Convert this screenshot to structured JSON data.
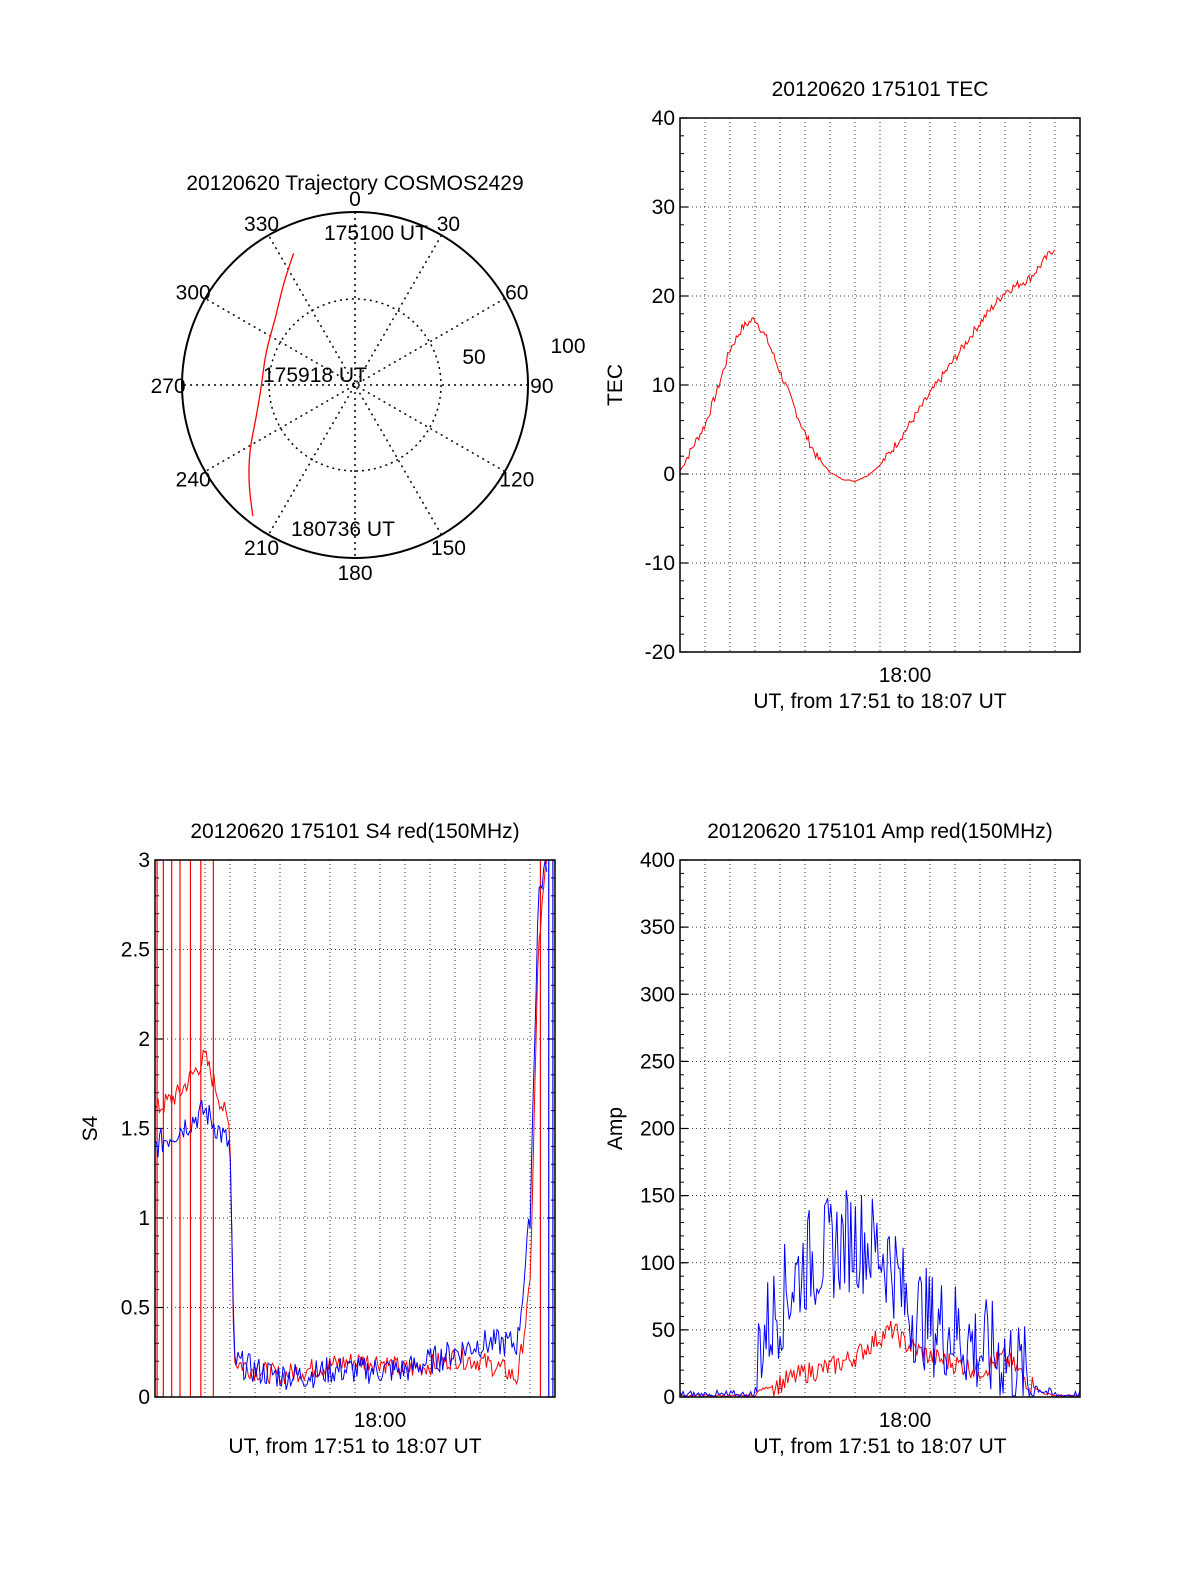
{
  "chart_data": [
    {
      "type": "polar",
      "title": "20120620 Trajectory COSMOS2429",
      "azimuth_labels": [
        {
          "az": 0,
          "label": "0"
        },
        {
          "az": 30,
          "label": "30"
        },
        {
          "az": 60,
          "label": "60"
        },
        {
          "az": 90,
          "label": "90"
        },
        {
          "az": 120,
          "label": "120"
        },
        {
          "az": 150,
          "label": "150"
        },
        {
          "az": 180,
          "label": "180"
        },
        {
          "az": 210,
          "label": "210"
        },
        {
          "az": 240,
          "label": "240"
        },
        {
          "az": 270,
          "label": "270"
        },
        {
          "az": 300,
          "label": "300"
        },
        {
          "az": 330,
          "label": "330"
        }
      ],
      "radial_labels": [
        "50",
        "100"
      ],
      "radial_max": 100,
      "radial_rings": [
        50
      ],
      "trajectory": {
        "color": "#ff0000",
        "points": [
          {
            "az": 335,
            "r": 84
          },
          {
            "az": 325,
            "r": 72
          },
          {
            "az": 310,
            "r": 60
          },
          {
            "az": 290,
            "r": 55
          },
          {
            "az": 270,
            "r": 54
          },
          {
            "az": 252,
            "r": 60
          },
          {
            "az": 238,
            "r": 72
          },
          {
            "az": 227,
            "r": 84
          },
          {
            "az": 218,
            "r": 96
          }
        ]
      },
      "annotations": [
        {
          "text": "175100 UT",
          "az": 335,
          "r": 84
        },
        {
          "text": "175918 UT",
          "az": 270,
          "r": 54
        },
        {
          "text": "180736 UT",
          "az": 218,
          "r": 96
        }
      ]
    },
    {
      "type": "line",
      "title": "20120620 175101 TEC",
      "ylabel": "TEC",
      "xlabel": "UT, from 17:51 to 18:07 UT",
      "xtick_label": "18:00",
      "xlim": [
        "17:51",
        "18:07"
      ],
      "ylim": [
        -20,
        40
      ],
      "yticks": [
        "-20",
        "-10",
        "0",
        "10",
        "20",
        "30",
        "40"
      ],
      "grid": true,
      "series": [
        {
          "color": "#ff0000",
          "noise": 0.5,
          "points": [
            [
              "17:51:00",
              0.3
            ],
            [
              "17:51:30",
              3.0
            ],
            [
              "17:52:00",
              5.5
            ],
            [
              "17:52:30",
              9.5
            ],
            [
              "17:53:00",
              14.0
            ],
            [
              "17:53:30",
              16.5
            ],
            [
              "17:54:00",
              17.5
            ],
            [
              "17:54:30",
              15.0
            ],
            [
              "17:55:00",
              11.5
            ],
            [
              "17:55:30",
              8.0
            ],
            [
              "17:56:00",
              4.5
            ],
            [
              "17:56:30",
              1.8
            ],
            [
              "17:57:00",
              0.2
            ],
            [
              "17:57:30",
              -0.6
            ],
            [
              "17:58:00",
              -0.8
            ],
            [
              "17:58:30",
              -0.2
            ],
            [
              "17:59:00",
              1.0
            ],
            [
              "17:59:30",
              2.8
            ],
            [
              "18:00:00",
              4.8
            ],
            [
              "18:01:00",
              9.0
            ],
            [
              "18:02:00",
              13.0
            ],
            [
              "18:03:00",
              17.0
            ],
            [
              "18:04:00",
              20.5
            ],
            [
              "18:05:00",
              22.0
            ],
            [
              "18:06:00",
              25.5
            ]
          ]
        }
      ]
    },
    {
      "type": "line",
      "title": "20120620 175101 S4 red(150MHz)",
      "ylabel": "S4",
      "xlabel": "UT, from 17:51 to 18:07 UT",
      "xtick_label": "18:00",
      "xlim": [
        "17:51",
        "18:07"
      ],
      "ylim": [
        0,
        3
      ],
      "yticks": [
        "0",
        "0.5",
        "1",
        "1.5",
        "2",
        "2.5",
        "3"
      ],
      "grid": true,
      "series": [
        {
          "color": "#ff0000",
          "noise": 0.06,
          "points": [
            [
              "17:51:00",
              1.6
            ],
            [
              "17:52:00",
              1.7
            ],
            [
              "17:53:00",
              1.9
            ],
            [
              "17:54:00",
              1.5
            ],
            [
              "17:54:10",
              0.2
            ],
            [
              "17:55:00",
              0.15
            ],
            [
              "17:56:00",
              0.12
            ],
            [
              "17:57:00",
              0.15
            ],
            [
              "17:58:00",
              0.18
            ],
            [
              "17:59:00",
              0.2
            ],
            [
              "18:00:00",
              0.2
            ],
            [
              "18:01:00",
              0.15
            ],
            [
              "18:02:00",
              0.18
            ],
            [
              "18:03:00",
              0.22
            ],
            [
              "18:04:00",
              0.2
            ],
            [
              "18:05:00",
              0.15
            ],
            [
              "18:05:30",
              0.1
            ],
            [
              "18:06:00",
              0.6
            ],
            [
              "18:06:20",
              2.5
            ],
            [
              "18:06:40",
              3.0
            ]
          ],
          "spikes": [
            "17:51:05",
            "17:51:20",
            "17:51:40",
            "17:52:00",
            "17:52:25",
            "17:52:50",
            "17:53:20",
            "18:06:25"
          ]
        },
        {
          "color": "#0000ff",
          "noise": 0.08,
          "points": [
            [
              "17:51:00",
              1.4
            ],
            [
              "17:52:00",
              1.5
            ],
            [
              "17:53:00",
              1.6
            ],
            [
              "17:54:00",
              1.4
            ],
            [
              "17:54:10",
              0.2
            ],
            [
              "17:55:00",
              0.15
            ],
            [
              "17:56:00",
              0.12
            ],
            [
              "17:57:00",
              0.12
            ],
            [
              "17:58:00",
              0.15
            ],
            [
              "17:59:00",
              0.15
            ],
            [
              "18:00:00",
              0.15
            ],
            [
              "18:01:00",
              0.15
            ],
            [
              "18:02:00",
              0.2
            ],
            [
              "18:03:00",
              0.25
            ],
            [
              "18:04:00",
              0.3
            ],
            [
              "18:05:00",
              0.3
            ],
            [
              "18:05:30",
              0.3
            ],
            [
              "18:06:00",
              1.0
            ],
            [
              "18:06:20",
              2.8
            ],
            [
              "18:06:40",
              3.0
            ]
          ],
          "spikes": [
            "18:06:45",
            "18:06:55"
          ]
        }
      ]
    },
    {
      "type": "line",
      "title": "20120620 175101 Amp red(150MHz)",
      "ylabel": "Amp",
      "xlabel": "UT, from 17:51 to 18:07 UT",
      "xtick_label": "18:00",
      "xlim": [
        "17:51",
        "18:07"
      ],
      "ylim": [
        0,
        400
      ],
      "yticks": [
        "0",
        "50",
        "100",
        "150",
        "200",
        "250",
        "300",
        "350",
        "400"
      ],
      "grid": true,
      "series": [
        {
          "color": "#ff0000",
          "noise": 8,
          "points": [
            [
              "17:51:00",
              1
            ],
            [
              "17:54:00",
              1
            ],
            [
              "17:54:10",
              5
            ],
            [
              "17:55:00",
              10
            ],
            [
              "17:56:00",
              18
            ],
            [
              "17:57:00",
              22
            ],
            [
              "17:58:00",
              30
            ],
            [
              "17:59:00",
              45
            ],
            [
              "17:59:30",
              50
            ],
            [
              "18:00:00",
              40
            ],
            [
              "18:01:00",
              30
            ],
            [
              "18:02:00",
              25
            ],
            [
              "18:03:00",
              20
            ],
            [
              "18:04:00",
              30
            ],
            [
              "18:04:30",
              20
            ],
            [
              "18:05:00",
              10
            ],
            [
              "18:05:30",
              3
            ],
            [
              "18:06:00",
              1
            ],
            [
              "18:07:00",
              1
            ]
          ]
        },
        {
          "color": "#0000ff",
          "noise": 40,
          "points": [
            [
              "17:51:00",
              1
            ],
            [
              "17:54:00",
              1
            ],
            [
              "17:54:10",
              40
            ],
            [
              "17:55:00",
              70
            ],
            [
              "17:56:00",
              100
            ],
            [
              "17:57:00",
              110
            ],
            [
              "17:58:00",
              120
            ],
            [
              "17:59:00",
              110
            ],
            [
              "17:59:30",
              100
            ],
            [
              "18:00:00",
              70
            ],
            [
              "18:01:00",
              55
            ],
            [
              "18:02:00",
              50
            ],
            [
              "18:03:00",
              35
            ],
            [
              "18:04:00",
              30
            ],
            [
              "18:04:30",
              20
            ],
            [
              "18:05:00",
              10
            ],
            [
              "18:05:30",
              5
            ],
            [
              "18:06:00",
              1
            ],
            [
              "18:07:00",
              1
            ]
          ]
        }
      ]
    }
  ]
}
